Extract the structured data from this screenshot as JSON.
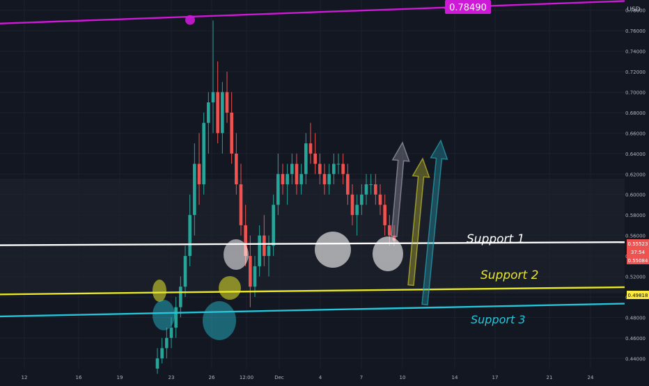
{
  "chart_data": {
    "type": "candlestick",
    "currency": "USD",
    "y_range": [
      0.43,
      0.79
    ],
    "y_ticks": [
      0.44,
      0.46,
      0.48,
      0.5,
      0.52,
      0.54,
      0.56,
      0.58,
      0.6,
      0.62,
      0.64,
      0.66,
      0.68,
      0.7,
      0.72,
      0.74,
      0.76,
      0.78
    ],
    "x_ticks": [
      "12",
      "16",
      "19",
      "23",
      "26",
      "12:00",
      "Dec",
      "4",
      "7",
      "10",
      "14",
      "17",
      "21",
      "24"
    ],
    "price_labels": [
      {
        "value": "0.55523",
        "color": "#ef5350",
        "text_color": "#ffffff"
      },
      {
        "value": "37:54",
        "color": "#ef5350",
        "text_color": "#ffffff"
      },
      {
        "value": "0.55084",
        "color": "#ef5350",
        "text_color": "#ffffff"
      },
      {
        "value": "0.49818",
        "color": "#ffeb3b",
        "text_color": "#000000"
      }
    ],
    "annotations": {
      "resistance_label": "0.78490",
      "support_1": "Support 1",
      "support_2": "Support 2",
      "support_3": "Support 3"
    },
    "lines": [
      {
        "name": "resistance",
        "color": "#cc1ad6",
        "y_start": 0.767,
        "y_end": 0.789
      },
      {
        "name": "support_1",
        "color": "#ffffff",
        "y_start": 0.5505,
        "y_end": 0.5535
      },
      {
        "name": "support_2",
        "color": "#e8e82a",
        "y_start": 0.5025,
        "y_end": 0.5095
      },
      {
        "name": "support_3",
        "color": "#26c6da",
        "y_start": 0.481,
        "y_end": 0.4935
      }
    ],
    "colors": {
      "up": "#26a69a",
      "down": "#ef5350",
      "background": "#131722",
      "grid": "#1e222d"
    },
    "candles": [
      [
        0.43,
        0.45,
        0.425,
        0.44
      ],
      [
        0.44,
        0.46,
        0.435,
        0.45
      ],
      [
        0.45,
        0.47,
        0.44,
        0.46
      ],
      [
        0.46,
        0.48,
        0.45,
        0.47
      ],
      [
        0.47,
        0.5,
        0.46,
        0.49
      ],
      [
        0.49,
        0.52,
        0.48,
        0.51
      ],
      [
        0.51,
        0.55,
        0.5,
        0.54
      ],
      [
        0.54,
        0.6,
        0.53,
        0.58
      ],
      [
        0.58,
        0.65,
        0.56,
        0.63
      ],
      [
        0.63,
        0.66,
        0.59,
        0.61
      ],
      [
        0.61,
        0.68,
        0.6,
        0.67
      ],
      [
        0.67,
        0.7,
        0.64,
        0.69
      ],
      [
        0.69,
        0.77,
        0.66,
        0.7
      ],
      [
        0.7,
        0.73,
        0.65,
        0.66
      ],
      [
        0.66,
        0.71,
        0.64,
        0.7
      ],
      [
        0.7,
        0.72,
        0.67,
        0.68
      ],
      [
        0.68,
        0.7,
        0.63,
        0.64
      ],
      [
        0.64,
        0.66,
        0.6,
        0.61
      ],
      [
        0.61,
        0.63,
        0.56,
        0.57
      ],
      [
        0.57,
        0.59,
        0.53,
        0.54
      ],
      [
        0.54,
        0.56,
        0.49,
        0.51
      ],
      [
        0.51,
        0.54,
        0.5,
        0.53
      ],
      [
        0.53,
        0.57,
        0.52,
        0.56
      ],
      [
        0.56,
        0.58,
        0.53,
        0.54
      ],
      [
        0.54,
        0.56,
        0.52,
        0.55
      ],
      [
        0.55,
        0.6,
        0.54,
        0.59
      ],
      [
        0.59,
        0.64,
        0.58,
        0.62
      ],
      [
        0.62,
        0.63,
        0.6,
        0.61
      ],
      [
        0.61,
        0.63,
        0.59,
        0.62
      ],
      [
        0.62,
        0.64,
        0.61,
        0.63
      ],
      [
        0.63,
        0.64,
        0.6,
        0.61
      ],
      [
        0.61,
        0.63,
        0.6,
        0.62
      ],
      [
        0.62,
        0.66,
        0.61,
        0.65
      ],
      [
        0.65,
        0.67,
        0.63,
        0.64
      ],
      [
        0.64,
        0.66,
        0.62,
        0.63
      ],
      [
        0.63,
        0.64,
        0.61,
        0.62
      ],
      [
        0.62,
        0.63,
        0.6,
        0.61
      ],
      [
        0.61,
        0.63,
        0.6,
        0.62
      ],
      [
        0.62,
        0.64,
        0.61,
        0.63
      ],
      [
        0.63,
        0.64,
        0.62,
        0.63
      ],
      [
        0.63,
        0.64,
        0.61,
        0.62
      ],
      [
        0.62,
        0.63,
        0.59,
        0.6
      ],
      [
        0.6,
        0.61,
        0.57,
        0.58
      ],
      [
        0.58,
        0.6,
        0.56,
        0.59
      ],
      [
        0.59,
        0.61,
        0.58,
        0.6
      ],
      [
        0.6,
        0.62,
        0.59,
        0.61
      ],
      [
        0.61,
        0.62,
        0.6,
        0.61
      ],
      [
        0.61,
        0.62,
        0.59,
        0.6
      ],
      [
        0.6,
        0.61,
        0.58,
        0.59
      ],
      [
        0.59,
        0.6,
        0.56,
        0.57
      ],
      [
        0.57,
        0.58,
        0.55,
        0.56
      ],
      [
        0.56,
        0.57,
        0.55,
        0.555
      ]
    ]
  }
}
